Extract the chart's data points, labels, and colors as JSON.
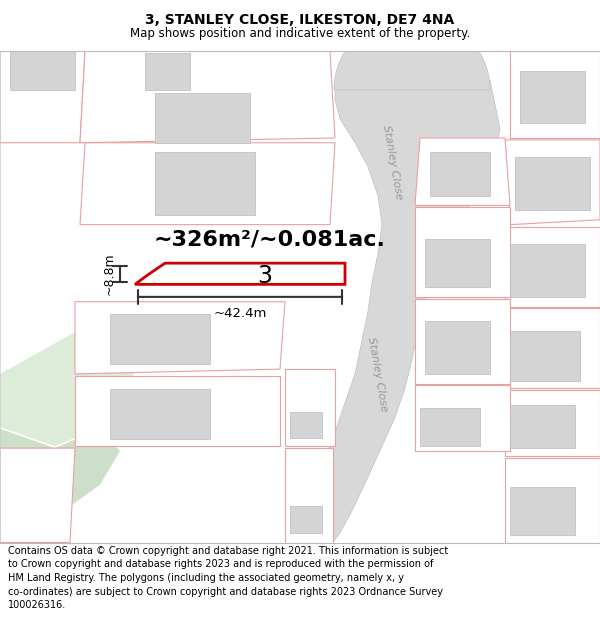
{
  "title": "3, STANLEY CLOSE, ILKESTON, DE7 4NA",
  "subtitle": "Map shows position and indicative extent of the property.",
  "footer_lines": "Contains OS data © Crown copyright and database right 2021. This information is subject\nto Crown copyright and database rights 2023 and is reproduced with the permission of\nHM Land Registry. The polygons (including the associated geometry, namely x, y\nco-ordinates) are subject to Crown copyright and database rights 2023 Ordnance Survey\n100026316.",
  "area_text": "~326m²/~0.081ac.",
  "dim_width": "~42.4m",
  "dim_height": "~8.8m",
  "plot_number": "3",
  "road_label_upper": "Stanley Close",
  "road_label_lower": "Stanley Close",
  "plot_outline_color": "#cc0000",
  "building_fill": "#d4d4d4",
  "building_outline": "#bbbbbb",
  "plot_edge_color": "#e8a0a0",
  "green_color": "#ddecd8",
  "road_fill": "#d8d8d8",
  "road_edge": "#c0c0c0"
}
